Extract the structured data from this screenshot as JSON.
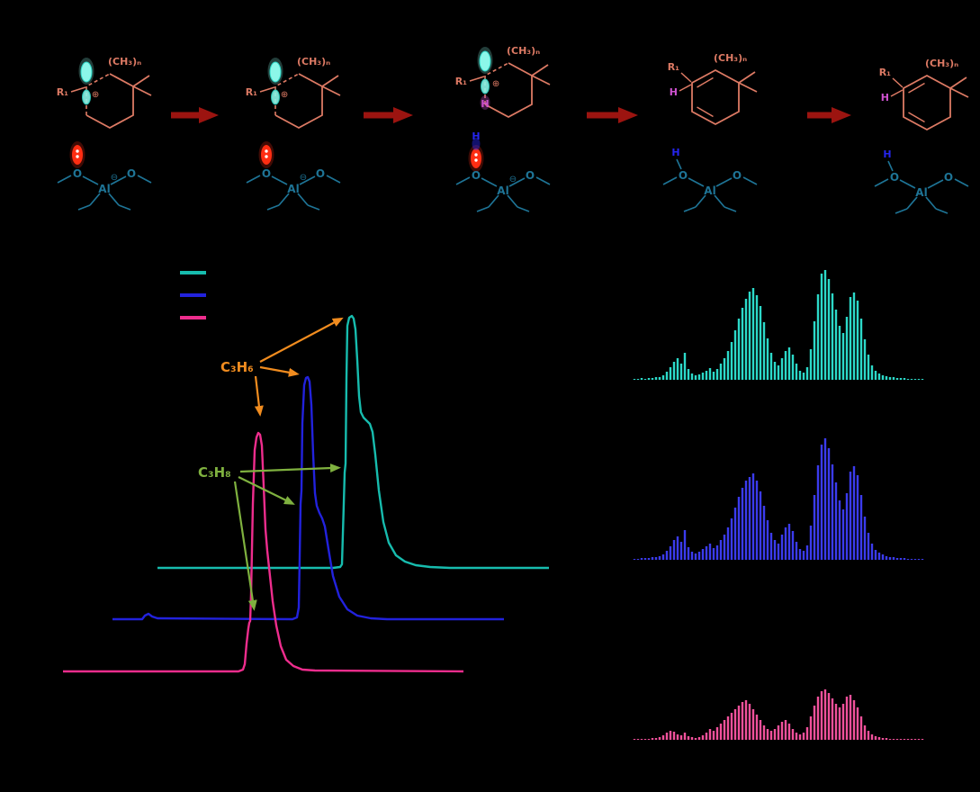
{
  "palette": {
    "bg": "#000000",
    "mol": "#dd7a64",
    "surface": "#1e7496",
    "cyan": "#8cf7e9",
    "cyanEdge": "#2ad6c6",
    "red": "#ff2d12",
    "hblue": "#2525ee",
    "magenta": "#cf52d0",
    "arrow": "#9c1410",
    "orange": "#f18c1f",
    "green": "#7fb13f"
  },
  "mechanism": {
    "structures": [
      {
        "ring_label": "(CH₃)ₙ",
        "r_label": "R₁",
        "charge": "⊕",
        "o_left": "O",
        "o_right": "O",
        "al": "Al",
        "al_charge": "⊖"
      },
      {
        "ring_label": "(CH₃)ₙ",
        "r_label": "R₁",
        "charge": "⊕",
        "o_left": "O",
        "o_right": "O",
        "al": "Al",
        "al_charge": "⊖"
      },
      {
        "ring_label": "(CH₃)ₙ",
        "r_label": "R₁",
        "charge": "⊕",
        "h_transfer": "H",
        "o_left": "O",
        "o_right": "O",
        "al": "Al",
        "al_charge": "⊖",
        "h_surface": "H"
      },
      {
        "ring_label": "(CH₃)ₙ",
        "r_label": "R₁",
        "h_ring": "H",
        "o_left": "O",
        "o_right": "O",
        "al": "Al",
        "h_surface": "H"
      },
      {
        "ring_label": "(CH₃)ₙ",
        "r_label": "R₁",
        "h_ring": "H",
        "o_left": "O",
        "o_right": "O",
        "al": "Al",
        "h_surface": "H"
      }
    ]
  },
  "chromatogram": {
    "legend": [
      {
        "color": "#17bcae"
      },
      {
        "color": "#2222dd"
      },
      {
        "color": "#ee2d8d"
      }
    ],
    "annotations": {
      "propene": {
        "text": "C₃H₆",
        "color": "#f18c1f"
      },
      "propane": {
        "text": "C₃H₈",
        "color": "#7fb13f"
      }
    }
  },
  "chart_data": [
    {
      "type": "line",
      "series": [
        {
          "name": "gc-trace-teal",
          "color": "#17bcae",
          "points": [
            [
              175,
              631
            ],
            [
              370,
              631
            ],
            [
              378,
              630
            ],
            [
              380,
              627
            ],
            [
              382,
              560
            ],
            [
              383,
              525
            ],
            [
              384,
              515
            ],
            [
              385,
              420
            ],
            [
              386,
              362
            ],
            [
              388,
              353
            ],
            [
              391,
              351
            ],
            [
              393,
              354
            ],
            [
              395,
              366
            ],
            [
              397,
              400
            ],
            [
              399,
              440
            ],
            [
              401,
              458
            ],
            [
              404,
              464
            ],
            [
              408,
              468
            ],
            [
              411,
              471
            ],
            [
              414,
              480
            ],
            [
              417,
              505
            ],
            [
              421,
              545
            ],
            [
              426,
              580
            ],
            [
              432,
              603
            ],
            [
              440,
              617
            ],
            [
              450,
              624
            ],
            [
              462,
              628
            ],
            [
              478,
              630
            ],
            [
              500,
              631
            ],
            [
              610,
              631
            ]
          ]
        },
        {
          "name": "gc-trace-blue",
          "color": "#2222dd",
          "points": [
            [
              125,
              688
            ],
            [
              158,
              688
            ],
            [
              161,
              684
            ],
            [
              165,
              682
            ],
            [
              169,
              685
            ],
            [
              175,
              687
            ],
            [
              325,
              688
            ],
            [
              330,
              686
            ],
            [
              332,
              675
            ],
            [
              333,
              620
            ],
            [
              334,
              560
            ],
            [
              335,
              545
            ],
            [
              336,
              470
            ],
            [
              338,
              428
            ],
            [
              340,
              420
            ],
            [
              342,
              419
            ],
            [
              344,
              424
            ],
            [
              346,
              450
            ],
            [
              348,
              505
            ],
            [
              350,
              548
            ],
            [
              352,
              562
            ],
            [
              355,
              570
            ],
            [
              358,
              576
            ],
            [
              361,
              585
            ],
            [
              365,
              610
            ],
            [
              370,
              640
            ],
            [
              377,
              663
            ],
            [
              386,
              677
            ],
            [
              397,
              684
            ],
            [
              412,
              687
            ],
            [
              430,
              688
            ],
            [
              560,
              688
            ]
          ]
        },
        {
          "name": "gc-trace-pink",
          "color": "#ee2d8d",
          "points": [
            [
              70,
              746
            ],
            [
              265,
              746
            ],
            [
              270,
              744
            ],
            [
              272,
              738
            ],
            [
              274,
              715
            ],
            [
              276,
              698
            ],
            [
              277,
              692
            ],
            [
              278,
              690
            ],
            [
              279,
              660
            ],
            [
              281,
              560
            ],
            [
              283,
              500
            ],
            [
              285,
              486
            ],
            [
              287,
              481
            ],
            [
              289,
              483
            ],
            [
              291,
              495
            ],
            [
              293,
              540
            ],
            [
              295,
              588
            ],
            [
              297,
              612
            ],
            [
              300,
              640
            ],
            [
              303,
              668
            ],
            [
              307,
              695
            ],
            [
              312,
              718
            ],
            [
              318,
              733
            ],
            [
              326,
              740
            ],
            [
              336,
              744
            ],
            [
              350,
              745
            ],
            [
              515,
              746
            ]
          ]
        }
      ]
    },
    {
      "type": "bar",
      "series": [
        {
          "name": "spectrum-teal",
          "color": "#2cd9c9",
          "baseline_y": 422,
          "x0": 705,
          "dx": 4,
          "heights": [
            1,
            1,
            2,
            1,
            2,
            2,
            3,
            3,
            5,
            9,
            14,
            20,
            24,
            18,
            30,
            12,
            7,
            5,
            6,
            8,
            10,
            13,
            9,
            12,
            18,
            24,
            32,
            42,
            55,
            68,
            80,
            90,
            98,
            102,
            94,
            82,
            64,
            46,
            30,
            20,
            16,
            24,
            32,
            36,
            28,
            18,
            10,
            8,
            14,
            34,
            65,
            95,
            118,
            122,
            112,
            96,
            78,
            60,
            52,
            70,
            92,
            97,
            88,
            68,
            45,
            28,
            16,
            10,
            7,
            5,
            4,
            3,
            3,
            2,
            2,
            2,
            1,
            1,
            1,
            1,
            1
          ]
        },
        {
          "name": "spectrum-blue",
          "color": "#3b3bee",
          "baseline_y": 622,
          "x0": 705,
          "dx": 4,
          "heights": [
            1,
            1,
            2,
            2,
            2,
            3,
            3,
            4,
            6,
            10,
            15,
            22,
            26,
            20,
            33,
            14,
            9,
            7,
            9,
            12,
            15,
            18,
            13,
            16,
            22,
            28,
            36,
            46,
            58,
            70,
            80,
            88,
            92,
            96,
            88,
            76,
            60,
            44,
            30,
            22,
            18,
            28,
            36,
            40,
            32,
            20,
            12,
            10,
            16,
            38,
            72,
            105,
            128,
            135,
            124,
            106,
            86,
            66,
            56,
            74,
            98,
            104,
            94,
            72,
            48,
            30,
            18,
            11,
            8,
            6,
            4,
            3,
            3,
            2,
            2,
            2,
            1,
            1,
            1,
            1,
            1
          ]
        },
        {
          "name": "spectrum-pink",
          "color": "#f1519b",
          "baseline_y": 822,
          "x0": 705,
          "dx": 4,
          "heights": [
            1,
            1,
            1,
            1,
            1,
            2,
            2,
            3,
            5,
            8,
            10,
            9,
            6,
            5,
            8,
            4,
            3,
            2,
            3,
            5,
            8,
            12,
            10,
            14,
            18,
            22,
            26,
            30,
            34,
            38,
            42,
            44,
            40,
            34,
            28,
            22,
            16,
            12,
            10,
            12,
            16,
            20,
            22,
            18,
            12,
            8,
            6,
            8,
            14,
            26,
            38,
            48,
            54,
            56,
            52,
            46,
            40,
            36,
            40,
            48,
            50,
            44,
            36,
            26,
            16,
            10,
            6,
            4,
            3,
            2,
            2,
            1,
            1,
            1,
            1,
            1,
            1,
            1,
            1,
            1,
            1
          ]
        }
      ]
    }
  ]
}
